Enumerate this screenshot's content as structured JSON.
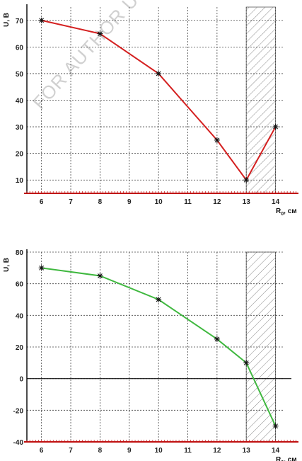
{
  "watermark": "FOR AUTHOR USE ONLY",
  "colors": {
    "top_line": "#d42020",
    "bottom_line": "#3fb83f",
    "axis_red": "#c01010",
    "grid": "#444444"
  },
  "chart_data": [
    {
      "type": "line",
      "ylabel": "U, B",
      "xlabel_main": "R",
      "xlabel_sub": "0",
      "xlabel_unit": ", см",
      "x_ticks": [
        "6",
        "7",
        "8",
        "9",
        "10",
        "11",
        "12",
        "13",
        "14"
      ],
      "y_ticks": [
        "10",
        "20",
        "30",
        "40",
        "50",
        "60",
        "70"
      ],
      "xlim": [
        5.5,
        14.3
      ],
      "ylim": [
        5,
        75
      ],
      "shaded_region": [
        13,
        14
      ],
      "grid": true,
      "series": [
        {
          "x": [
            6,
            8,
            10,
            12,
            13,
            14
          ],
          "y": [
            70,
            65,
            50,
            25,
            10,
            30
          ]
        }
      ]
    },
    {
      "type": "line",
      "ylabel": "U, B",
      "xlabel_main": "R",
      "xlabel_sub": "0",
      "xlabel_unit": ", см",
      "x_ticks": [
        "6",
        "7",
        "8",
        "9",
        "10",
        "11",
        "12",
        "13",
        "14"
      ],
      "y_ticks": [
        "-40",
        "-20",
        "0",
        "20",
        "40",
        "60",
        "80"
      ],
      "xlim": [
        5.5,
        14.3
      ],
      "ylim": [
        -40,
        80
      ],
      "shaded_region": [
        13,
        14
      ],
      "grid": true,
      "series": [
        {
          "x": [
            6,
            8,
            10,
            12,
            13,
            14
          ],
          "y": [
            70,
            65,
            50,
            25,
            10,
            -30
          ]
        }
      ]
    }
  ]
}
